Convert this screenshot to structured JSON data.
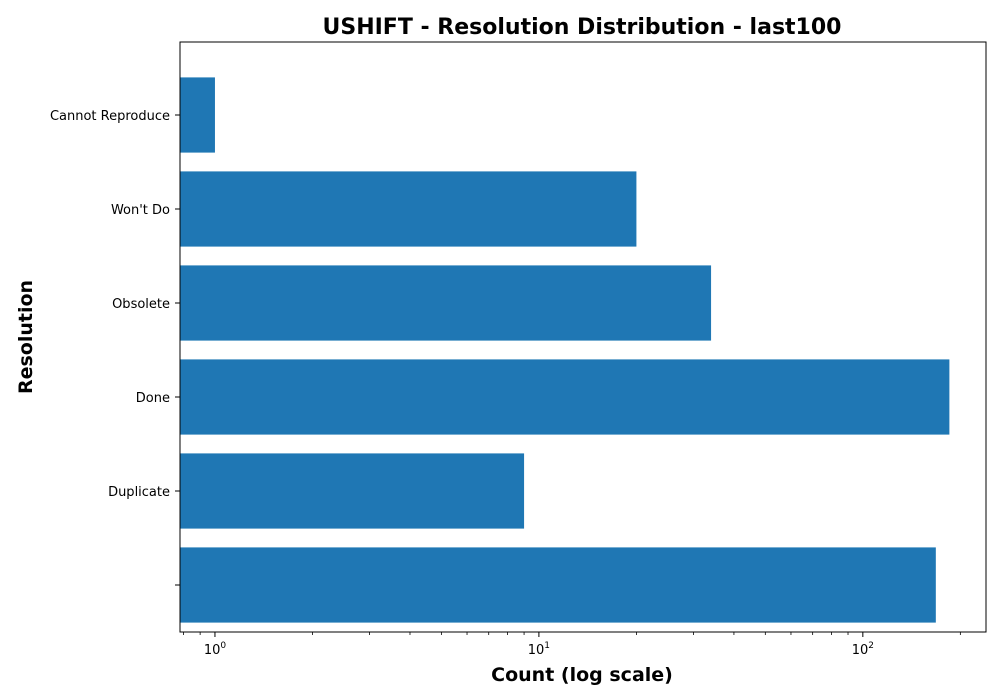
{
  "chart_data": {
    "type": "bar",
    "orientation": "horizontal",
    "title": "USHIFT - Resolution Distribution - last100",
    "xlabel": "Count (log scale)",
    "ylabel": "Resolution",
    "x_scale": "log",
    "xlim": [
      0.78,
      240
    ],
    "x_ticks": [
      {
        "value": 1,
        "base": "10",
        "exp": "0"
      },
      {
        "value": 10,
        "base": "10",
        "exp": "1"
      },
      {
        "value": 100,
        "base": "10",
        "exp": "2"
      }
    ],
    "categories": [
      "Cannot Reproduce",
      "Won't Do",
      "Obsolete",
      "Done",
      "Duplicate",
      ""
    ],
    "values": [
      1,
      20,
      34,
      185,
      9,
      168
    ],
    "grid": false,
    "legend": false,
    "bar_color": "#1f77b4"
  }
}
